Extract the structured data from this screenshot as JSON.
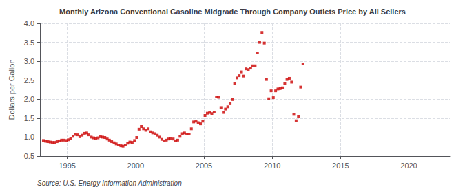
{
  "chart_data": {
    "type": "scatter",
    "title": "Monthly Arizona Conventional Gasoline Midgrade Through Company Outlets Price by All Sellers",
    "ylabel": "Dollars per Gallon",
    "annotation": "Source: U.S. Energy Information Administration",
    "color": "#cc0000",
    "marker": "square",
    "grid": true,
    "xlim": [
      1993.0,
      2023.0
    ],
    "ylim": [
      0.5,
      4.0
    ],
    "xticks": [
      1995,
      2000,
      2005,
      2010,
      2015,
      2020
    ],
    "yticks": [
      0.5,
      {
        "value": 1.0,
        "label": "1.0"
      },
      1.5,
      {
        "value": 2.0,
        "label": "2.0"
      },
      2.5,
      {
        "value": 3.0,
        "label": "3.0"
      },
      3.5,
      {
        "value": 4.0,
        "label": "4.0"
      }
    ],
    "x": [
      1993.25,
      1993.42,
      1993.58,
      1993.75,
      1993.92,
      1994.08,
      1994.25,
      1994.42,
      1994.58,
      1994.75,
      1994.92,
      1995.08,
      1995.25,
      1995.42,
      1995.58,
      1995.75,
      1995.92,
      1996.08,
      1996.25,
      1996.42,
      1996.58,
      1996.75,
      1996.92,
      1997.08,
      1997.25,
      1997.42,
      1997.58,
      1997.75,
      1997.92,
      1998.08,
      1998.25,
      1998.42,
      1998.58,
      1998.75,
      1998.92,
      1999.08,
      1999.25,
      1999.42,
      1999.58,
      1999.75,
      1999.92,
      2000.08,
      2000.25,
      2000.42,
      2000.58,
      2000.75,
      2000.92,
      2001.08,
      2001.25,
      2001.42,
      2001.58,
      2001.75,
      2001.92,
      2002.08,
      2002.25,
      2002.42,
      2002.58,
      2002.75,
      2002.92,
      2003.08,
      2003.25,
      2003.42,
      2003.58,
      2003.75,
      2003.92,
      2004.08,
      2004.25,
      2004.42,
      2004.58,
      2004.75,
      2004.92,
      2005.08,
      2005.25,
      2005.42,
      2005.58,
      2005.75,
      2005.92,
      2006.08,
      2006.25,
      2006.42,
      2006.58,
      2006.75,
      2006.92,
      2007.08,
      2007.25,
      2007.42,
      2007.58,
      2007.75,
      2007.92,
      2008.08,
      2008.25,
      2008.42,
      2008.58,
      2008.75,
      2008.92,
      2009.08,
      2009.25,
      2009.42,
      2009.58,
      2009.75,
      2009.92,
      2010.08,
      2010.25,
      2010.42,
      2010.58,
      2010.75,
      2010.92,
      2011.08,
      2011.25,
      2011.42,
      2011.58,
      2011.75,
      2011.92,
      2012.08,
      2012.25
    ],
    "values": [
      0.91,
      0.89,
      0.88,
      0.87,
      0.86,
      0.86,
      0.88,
      0.9,
      0.92,
      0.92,
      0.91,
      0.93,
      0.96,
      1.02,
      1.07,
      1.06,
      1.01,
      1.05,
      1.1,
      1.11,
      1.06,
      1.0,
      0.98,
      0.97,
      0.98,
      1.01,
      1.0,
      0.99,
      0.95,
      0.92,
      0.88,
      0.85,
      0.82,
      0.79,
      0.77,
      0.76,
      0.79,
      0.84,
      0.87,
      0.86,
      0.91,
      0.99,
      1.21,
      1.28,
      1.22,
      1.18,
      1.22,
      1.14,
      1.11,
      1.09,
      1.05,
      1.0,
      0.94,
      0.9,
      0.92,
      0.95,
      0.97,
      0.95,
      0.9,
      0.92,
      1.02,
      1.09,
      1.11,
      1.08,
      1.08,
      1.22,
      1.4,
      1.42,
      1.38,
      1.35,
      1.42,
      1.57,
      1.63,
      1.65,
      1.62,
      1.66,
      2.06,
      2.05,
      1.78,
      1.65,
      1.74,
      1.8,
      1.88,
      1.99,
      2.41,
      2.56,
      2.62,
      2.72,
      2.61,
      2.8,
      2.78,
      2.82,
      2.88,
      2.88,
      3.22,
      3.5,
      3.76,
      3.48,
      2.52,
      2.01,
      2.22,
      2.04,
      2.22,
      2.27,
      2.28,
      2.3,
      2.42,
      2.52,
      2.55,
      2.45,
      1.6,
      1.43,
      1.55,
      2.32,
      2.93
    ]
  }
}
